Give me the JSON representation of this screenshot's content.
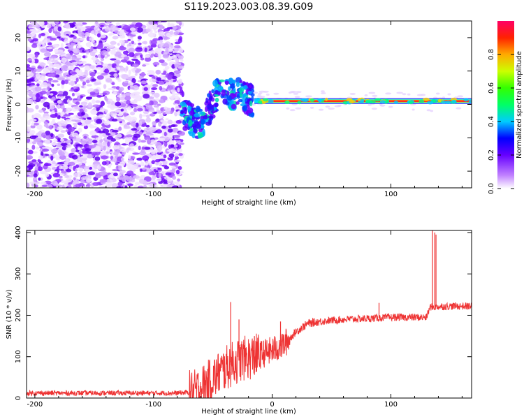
{
  "figure": {
    "title": "S119.2023.003.08.39.G09"
  },
  "chart_data": [
    {
      "type": "heatmap",
      "xlabel": "Height of straight line (km)",
      "ylabel": "Frequency (Hz)",
      "xlim": [
        -207,
        168
      ],
      "ylim": [
        -25,
        25
      ],
      "x_ticks": [
        -200,
        -100,
        0,
        100
      ],
      "y_ticks": [
        -20,
        -10,
        0,
        10,
        20
      ],
      "colorbar": {
        "label": "Normalized spectral amplitude",
        "range": [
          0,
          1
        ],
        "ticks": [
          "0.0",
          "0.2",
          "0.4",
          "0.6",
          "0.8"
        ]
      },
      "ridge": {
        "description_points": [
          [
            -75,
            -3
          ],
          [
            -60,
            -6
          ],
          [
            -45,
            4
          ],
          [
            -30,
            3
          ],
          [
            -15,
            1
          ],
          [
            0,
            1
          ],
          [
            80,
            1
          ],
          [
            168,
            1
          ]
        ],
        "note": "noise region from -207 to -75 km; carrier line near 1 Hz from about -20 km"
      }
    },
    {
      "type": "line",
      "xlabel": "Height of straight line (km)",
      "ylabel": "SNR (10 * v/v)",
      "xlim": [
        -207,
        168
      ],
      "ylim": [
        0,
        405
      ],
      "x_ticks": [
        -200,
        -100,
        0,
        100
      ],
      "y_ticks": [
        0,
        100,
        200,
        300,
        400
      ],
      "color": "#ee3333",
      "profile_points": [
        [
          -207,
          12
        ],
        [
          -150,
          12
        ],
        [
          -80,
          12
        ],
        [
          -65,
          15
        ],
        [
          -55,
          35
        ],
        [
          -45,
          60
        ],
        [
          -35,
          80
        ],
        [
          -25,
          95
        ],
        [
          -15,
          100
        ],
        [
          -5,
          110
        ],
        [
          0,
          115
        ],
        [
          10,
          130
        ],
        [
          20,
          160
        ],
        [
          30,
          180
        ],
        [
          40,
          185
        ],
        [
          60,
          190
        ],
        [
          80,
          192
        ],
        [
          100,
          195
        ],
        [
          130,
          195
        ],
        [
          133,
          220
        ],
        [
          150,
          222
        ],
        [
          168,
          222
        ]
      ],
      "spikes": [
        [
          -35,
          232
        ],
        [
          -28,
          190
        ],
        [
          -15,
          150
        ],
        [
          7,
          185
        ],
        [
          90,
          230
        ],
        [
          135,
          405
        ],
        [
          137,
          400
        ],
        [
          138,
          395
        ]
      ]
    }
  ]
}
